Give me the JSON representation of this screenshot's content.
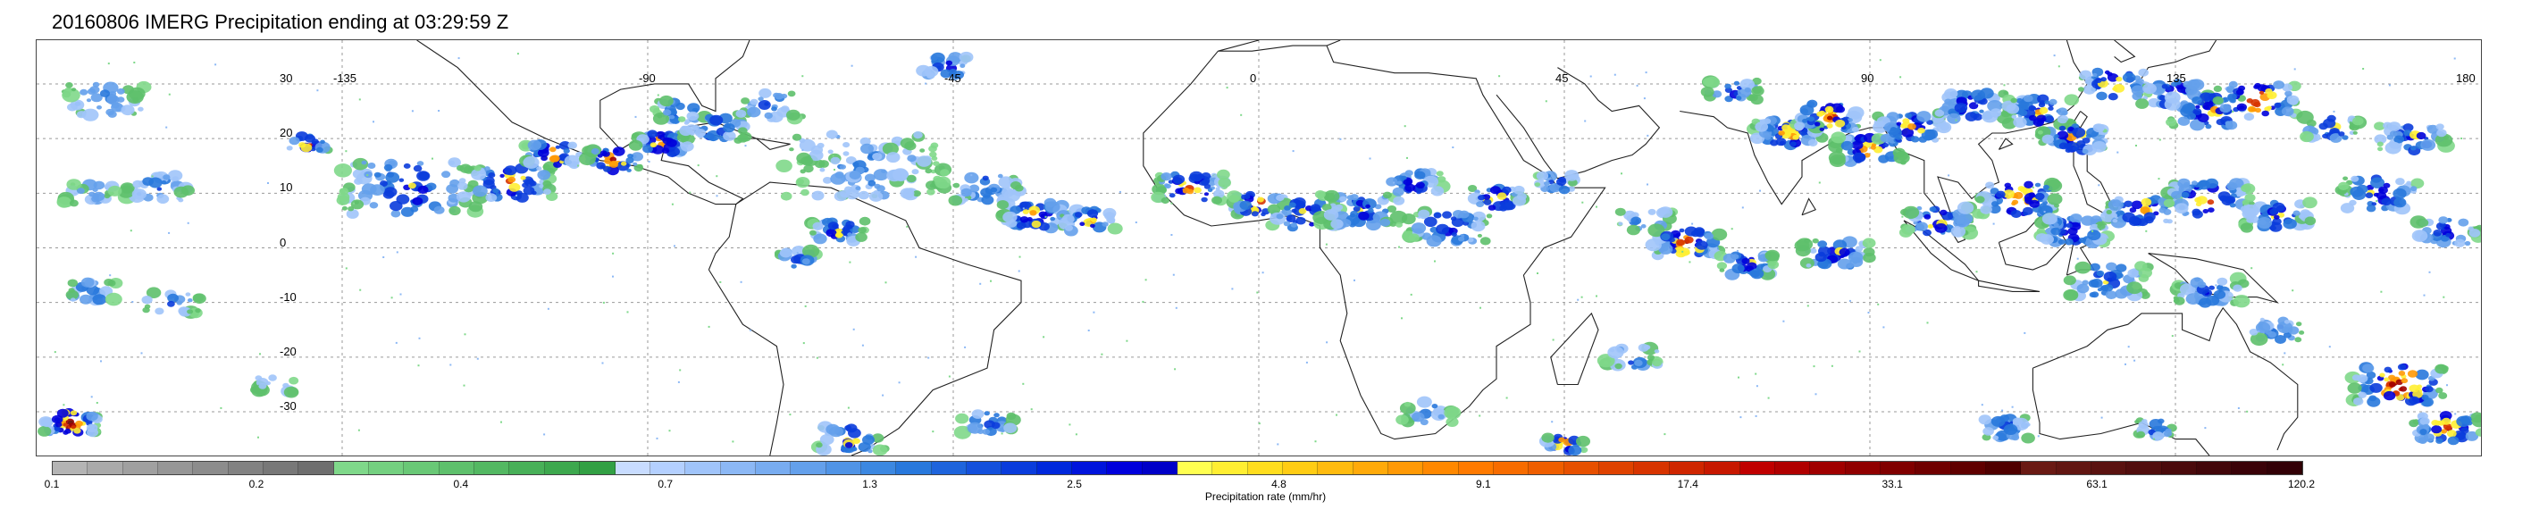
{
  "title": "20160806 IMERG Precipitation ending at 03:29:59 Z",
  "map": {
    "lon_labels": [
      "-135",
      "-90",
      "-45",
      "0",
      "45",
      "90",
      "135",
      "180"
    ],
    "lat_labels": [
      "30",
      "20",
      "10",
      "0",
      "-10",
      "-20",
      "-30"
    ]
  },
  "colorbar": {
    "title": "Precipitation rate (mm/hr)",
    "tick_labels": [
      "0.1",
      "0.2",
      "0.4",
      "0.7",
      "1.3",
      "2.5",
      "4.8",
      "9.1",
      "17.4",
      "33.1",
      "63.1",
      "120.2"
    ],
    "colors": [
      "#b4b4b4",
      "#aaaaaa",
      "#a0a0a0",
      "#969696",
      "#8c8c8c",
      "#828282",
      "#787878",
      "#6e6e6e",
      "#7fd88a",
      "#74d080",
      "#69c876",
      "#5ec06c",
      "#53b862",
      "#48b058",
      "#3da84e",
      "#32a044",
      "#c8dcff",
      "#b4d0ff",
      "#a0c4fa",
      "#8cb8f5",
      "#78acf0",
      "#64a0eb",
      "#5094e6",
      "#3c88e1",
      "#2878dc",
      "#1e64dc",
      "#1450dc",
      "#0a3cdc",
      "#0028dc",
      "#0014dc",
      "#0000dc",
      "#0000c8",
      "#ffff50",
      "#ffee32",
      "#ffdd1e",
      "#ffcc14",
      "#ffbb0f",
      "#ffaa0a",
      "#ff9905",
      "#ff8800",
      "#ff7a00",
      "#f76c00",
      "#ef5e00",
      "#e75000",
      "#df4200",
      "#d73400",
      "#cf2600",
      "#c71800",
      "#c00000",
      "#b00000",
      "#a00000",
      "#900000",
      "#800000",
      "#700000",
      "#600000",
      "#500000",
      "#6a1a14",
      "#621612",
      "#5a1210",
      "#520e0e",
      "#4a0a0c",
      "#42060a",
      "#3a0208",
      "#320006"
    ]
  }
}
